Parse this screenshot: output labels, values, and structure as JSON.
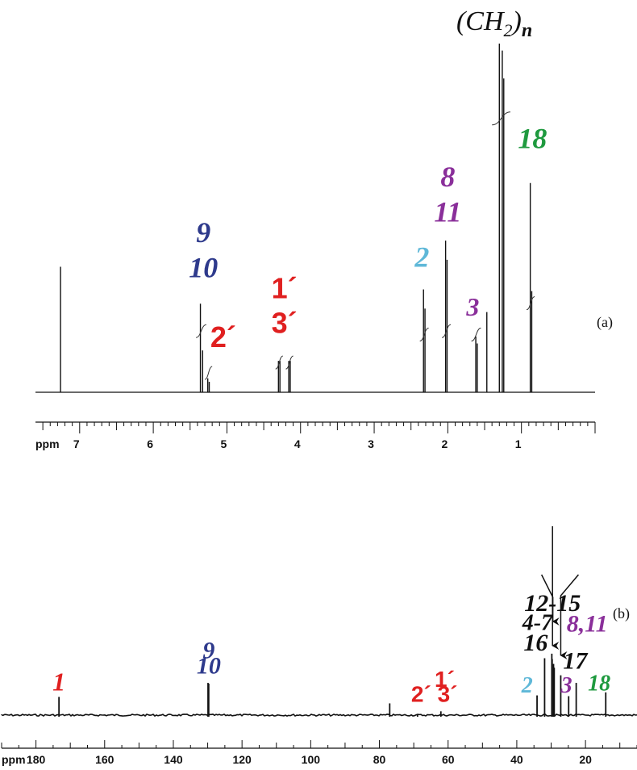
{
  "chart_data": [
    {
      "panel_label": "(a)",
      "type": "line",
      "x_axis_unit": "ppm",
      "xlim": [
        7.6,
        0.0
      ],
      "x_ticks": [
        7,
        6,
        5,
        4,
        3,
        2,
        1
      ],
      "colors": {
        "blue": "#2e3a8c",
        "red": "#e02020",
        "cyan": "#5fb8d8",
        "purple": "#8a2f9a",
        "green": "#1f9a3f",
        "black": "#111111"
      },
      "peaks": [
        {
          "ppm": 7.26,
          "height": 0.36
        },
        {
          "ppm": 5.36,
          "height": 0.254
        },
        {
          "ppm": 5.33,
          "height": 0.12
        },
        {
          "ppm": 5.26,
          "height": 0.04
        },
        {
          "ppm": 5.24,
          "height": 0.03
        },
        {
          "ppm": 4.3,
          "height": 0.09
        },
        {
          "ppm": 4.28,
          "height": 0.09
        },
        {
          "ppm": 4.16,
          "height": 0.09
        },
        {
          "ppm": 4.14,
          "height": 0.09
        },
        {
          "ppm": 2.33,
          "height": 0.295
        },
        {
          "ppm": 2.31,
          "height": 0.24
        },
        {
          "ppm": 2.03,
          "height": 0.435
        },
        {
          "ppm": 2.01,
          "height": 0.38
        },
        {
          "ppm": 1.62,
          "height": 0.16
        },
        {
          "ppm": 1.6,
          "height": 0.14
        },
        {
          "ppm": 1.47,
          "height": 0.23
        },
        {
          "ppm": 1.3,
          "height": 1.0
        },
        {
          "ppm": 1.26,
          "height": 0.98
        },
        {
          "ppm": 1.24,
          "height": 0.9
        },
        {
          "ppm": 0.88,
          "height": 0.6
        },
        {
          "ppm": 0.86,
          "height": 0.29
        }
      ],
      "integrals": [
        {
          "from": 5.42,
          "to": 5.28,
          "rise": 0.18
        },
        {
          "from": 5.3,
          "to": 5.2,
          "rise": 0.06
        },
        {
          "from": 4.34,
          "to": 4.24,
          "rise": 0.09
        },
        {
          "from": 4.2,
          "to": 4.1,
          "rise": 0.09
        },
        {
          "from": 2.38,
          "to": 2.26,
          "rise": 0.17
        },
        {
          "from": 2.08,
          "to": 1.96,
          "rise": 0.18
        },
        {
          "from": 1.68,
          "to": 1.55,
          "rise": 0.17
        },
        {
          "from": 1.4,
          "to": 1.15,
          "rise": 0.79
        },
        {
          "from": 0.93,
          "to": 0.82,
          "rise": 0.26
        }
      ],
      "annotations": [
        {
          "text": "(CH",
          "sub": "2",
          "after": ")",
          "sub2": "n",
          "ppm": 1.28,
          "level": 1.0,
          "color": "black",
          "font": "serif-italic-plain",
          "size": 34
        },
        {
          "text": "18",
          "ppm": 0.85,
          "level": 0.7,
          "color": "green",
          "size": 36
        },
        {
          "text": "8",
          "ppm": 2.0,
          "level": 0.59,
          "color": "purple",
          "size": 36
        },
        {
          "text": "11",
          "ppm": 2.0,
          "level": 0.49,
          "color": "purple",
          "size": 36
        },
        {
          "text": "2",
          "ppm": 2.35,
          "level": 0.36,
          "color": "cyan",
          "size": 36
        },
        {
          "text": "3",
          "ppm": 1.66,
          "level": 0.22,
          "color": "purple",
          "size": 32
        },
        {
          "text": "9",
          "ppm": 5.32,
          "level": 0.43,
          "color": "blue",
          "size": 36
        },
        {
          "text": "10",
          "ppm": 5.32,
          "level": 0.33,
          "color": "blue",
          "size": 36
        },
        {
          "text": "1´",
          "ppm": 4.22,
          "level": 0.27,
          "color": "red",
          "size": 36
        },
        {
          "text": "3´",
          "ppm": 4.22,
          "level": 0.17,
          "color": "red",
          "size": 36
        },
        {
          "text": "2´",
          "ppm": 5.05,
          "level": 0.13,
          "color": "red",
          "size": 36
        }
      ]
    },
    {
      "panel_label": "(b)",
      "type": "line",
      "x_axis_unit": "ppm",
      "xlim": [
        190,
        5
      ],
      "x_ticks": [
        180,
        160,
        140,
        120,
        100,
        80,
        60,
        40,
        20
      ],
      "peaks": [
        {
          "ppm": 173.3,
          "height": 0.48
        },
        {
          "ppm": 129.9,
          "height": 0.85
        },
        {
          "ppm": 129.7,
          "height": 0.83
        },
        {
          "ppm": 77.0,
          "height": 0.31
        },
        {
          "ppm": 68.9,
          "height": 0.03
        },
        {
          "ppm": 62.1,
          "height": 0.1
        },
        {
          "ppm": 34.1,
          "height": 0.52
        },
        {
          "ppm": 31.9,
          "height": 1.5
        },
        {
          "ppm": 29.8,
          "height": 1.62
        },
        {
          "ppm": 29.7,
          "height": 1.48
        },
        {
          "ppm": 29.3,
          "height": 1.35
        },
        {
          "ppm": 29.1,
          "height": 1.25
        },
        {
          "ppm": 27.2,
          "height": 1.05
        },
        {
          "ppm": 24.9,
          "height": 0.5
        },
        {
          "ppm": 22.7,
          "height": 0.85
        },
        {
          "ppm": 14.1,
          "height": 0.6
        }
      ],
      "annotations": [
        {
          "text": "12-15",
          "ppm": 29.6,
          "level": 2.75,
          "color": "black",
          "size": 30
        },
        {
          "text": "4-7",
          "ppm": 34.0,
          "level": 2.25,
          "color": "black",
          "size": 28
        },
        {
          "text": "8,11",
          "ppm": 19.5,
          "level": 2.2,
          "color": "purple",
          "size": 30
        },
        {
          "text": "16",
          "ppm": 34.5,
          "level": 1.7,
          "color": "black",
          "size": 30
        },
        {
          "text": "17",
          "ppm": 23.0,
          "level": 1.22,
          "color": "black",
          "size": 30
        },
        {
          "text": "2",
          "ppm": 37.0,
          "level": 0.6,
          "color": "cyan",
          "size": 28
        },
        {
          "text": "3",
          "ppm": 25.5,
          "level": 0.6,
          "color": "purple",
          "size": 28
        },
        {
          "text": "18",
          "ppm": 16.0,
          "level": 0.65,
          "color": "green",
          "size": 28
        },
        {
          "text": "9",
          "ppm": 129.7,
          "level": 1.5,
          "color": "blue",
          "size": 30
        },
        {
          "text": "10",
          "ppm": 129.7,
          "level": 1.1,
          "color": "blue",
          "size": 30
        },
        {
          "text": "1",
          "ppm": 173.3,
          "level": 0.65,
          "color": "red",
          "size": 32
        },
        {
          "text": "1´",
          "ppm": 61.0,
          "level": 0.75,
          "color": "red",
          "size": 28
        },
        {
          "text": "2´ 3´",
          "ppm": 64.0,
          "level": 0.35,
          "color": "red",
          "size": 28
        }
      ],
      "arrows": [
        {
          "label": "12-15",
          "ppm": 29.6
        },
        {
          "label": "4-7",
          "ppm": 29.5
        },
        {
          "label": "8,11",
          "ppm": 27.2
        }
      ]
    }
  ]
}
